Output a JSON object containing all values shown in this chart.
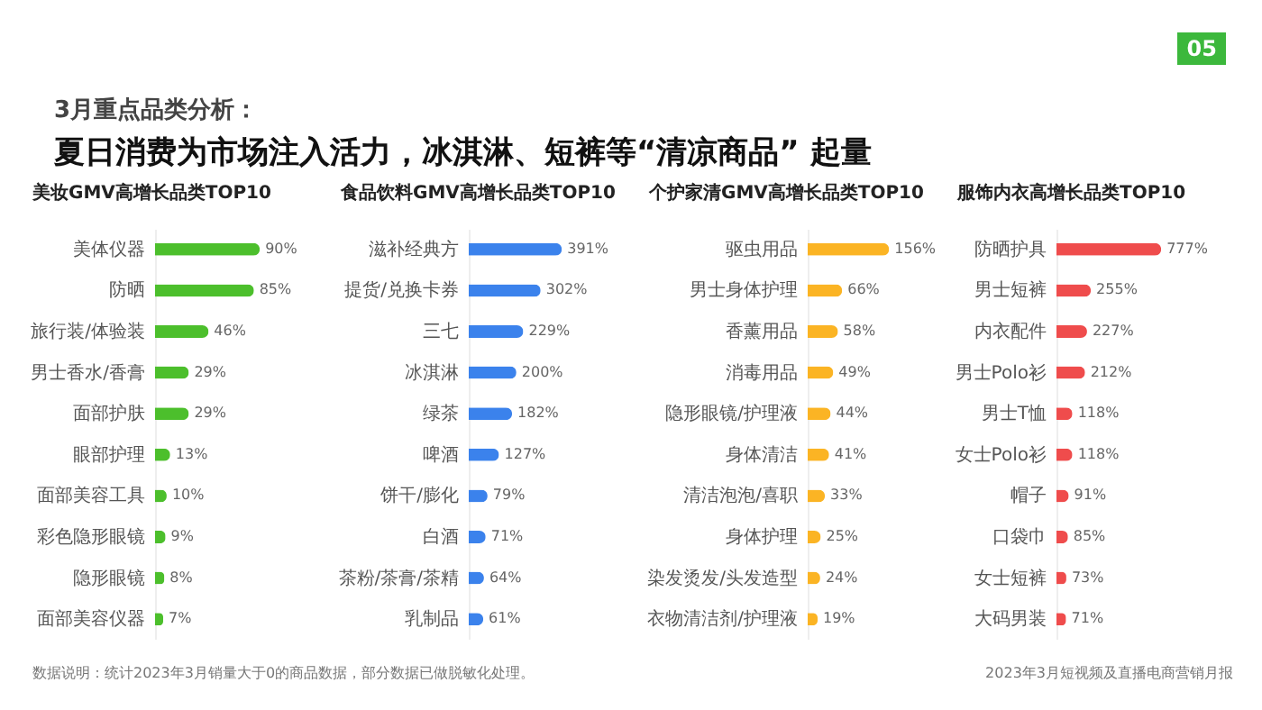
{
  "chart_data": [
    {
      "type": "other",
      "title": "夏日消费为市场注入活力，冰淇淋、短裤等“清凉商品” 起量",
      "subtitle": "3月重点品类分析：",
      "annotations": [
        "05"
      ]
    },
    {
      "type": "bar",
      "orientation": "horizontal",
      "title": "美妆GMV高增长品类TOP10",
      "color": "#4cbf2c",
      "categories": [
        "美体仪器",
        "防晒",
        "旅行装/体验装",
        "男士香水/香膏",
        "面部护肤",
        "眼部护理",
        "面部美容工具",
        "彩色隐形眼镜",
        "隐形眼镜",
        "面部美容仪器"
      ],
      "values": [
        90,
        85,
        46,
        29,
        29,
        13,
        10,
        9,
        8,
        7
      ],
      "value_labels": [
        "90%",
        "85%",
        "46%",
        "29%",
        "29%",
        "13%",
        "10%",
        "9%",
        "8%",
        "7%"
      ],
      "annotations": [
        "数据说明：统计2023年3月销量大于0的商品数据，部分数据已做脱敏化处理。"
      ]
    },
    {
      "type": "bar",
      "orientation": "horizontal",
      "title": "食品饮料GMV高增长品类TOP10",
      "color": "#3b82ec",
      "categories": [
        "滋补经典方",
        "提货/兑换卡券",
        "三七",
        "冰淇淋",
        "绿茶",
        "啤酒",
        "饼干/膨化",
        "白酒",
        "茶粉/茶膏/茶精",
        "乳制品"
      ],
      "values": [
        391,
        302,
        229,
        200,
        182,
        127,
        79,
        71,
        64,
        61
      ],
      "value_labels": [
        "391%",
        "302%",
        "229%",
        "200%",
        "182%",
        "127%",
        "79%",
        "71%",
        "64%",
        "61%"
      ]
    },
    {
      "type": "bar",
      "orientation": "horizontal",
      "title": "个护家清GMV高增长品类TOP10",
      "color": "#fbb424",
      "categories": [
        "驱虫用品",
        "男士身体护理",
        "香薰用品",
        "消毒用品",
        "隐形眼镜/护理液",
        "身体清洁",
        "清洁泡泡/喜职",
        "身体护理",
        "染发烫发/头发造型",
        "衣物清洁剂/护理液"
      ],
      "values": [
        156,
        66,
        58,
        49,
        44,
        41,
        33,
        25,
        24,
        19
      ],
      "value_labels": [
        "156%",
        "66%",
        "58%",
        "49%",
        "44%",
        "41%",
        "33%",
        "25%",
        "24%",
        "19%"
      ]
    },
    {
      "type": "bar",
      "orientation": "horizontal",
      "title": "服饰内衣高增长品类TOP10",
      "color": "#ef4c4c",
      "categories": [
        "防晒护具",
        "男士短裤",
        "内衣配件",
        "男士Polo衫",
        "男士T恤",
        "女士Polo衫",
        "帽子",
        "口袋巾",
        "女士短裤",
        "大码男装"
      ],
      "values": [
        777,
        255,
        227,
        212,
        118,
        118,
        91,
        85,
        73,
        71
      ],
      "value_labels": [
        "777%",
        "255%",
        "227%",
        "212%",
        "118%",
        "118%",
        "91%",
        "85%",
        "73%",
        "71%"
      ],
      "annotations": [
        "2023年3月短视频及直播电商营销月报"
      ]
    }
  ]
}
